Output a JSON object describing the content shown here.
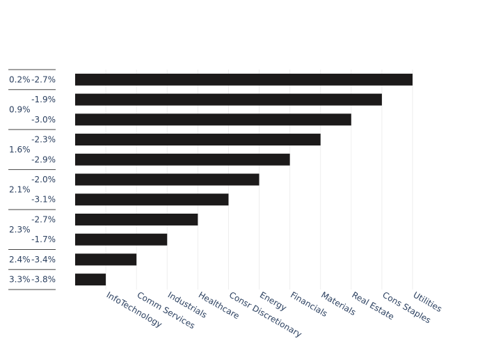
{
  "chart_data": {
    "type": "bar",
    "orientation": "horizontal",
    "categories": [
      "-2.7%",
      "-1.9%",
      "-3.0%",
      "-2.3%",
      "-2.9%",
      "-2.0%",
      "-3.1%",
      "-2.7%",
      "-1.7%",
      "-3.4%",
      "-3.8%"
    ],
    "values": [
      11,
      10,
      9,
      8,
      7,
      6,
      5,
      4,
      3,
      2,
      1
    ],
    "group_labels": [
      {
        "label": "0.2%",
        "start": 0,
        "end": 0
      },
      {
        "label": "0.9%",
        "start": 1,
        "end": 2
      },
      {
        "label": "1.6%",
        "start": 3,
        "end": 4
      },
      {
        "label": "2.1%",
        "start": 5,
        "end": 6
      },
      {
        "label": "2.3%",
        "start": 7,
        "end": 8
      },
      {
        "label": "2.4%",
        "start": 9,
        "end": 9
      },
      {
        "label": "3.3%",
        "start": 10,
        "end": 10
      }
    ],
    "x_ticks": [
      {
        "value": 1,
        "label": "InfoTechnology"
      },
      {
        "value": 2,
        "label": "Comm Services"
      },
      {
        "value": 3,
        "label": "Industrials"
      },
      {
        "value": 4,
        "label": "Healthcare"
      },
      {
        "value": 5,
        "label": "Consr Discretionary"
      },
      {
        "value": 6,
        "label": "Energy"
      },
      {
        "value": 7,
        "label": "Financials"
      },
      {
        "value": 8,
        "label": "Materials"
      },
      {
        "value": 9,
        "label": "Real Estate"
      },
      {
        "value": 10,
        "label": "Cons Staples"
      },
      {
        "value": 11,
        "label": "Utilities"
      }
    ],
    "xlim": [
      0,
      11
    ],
    "grid": true,
    "title": "",
    "xlabel": "",
    "ylabel": "",
    "bar_color": "#1c1a1a"
  }
}
